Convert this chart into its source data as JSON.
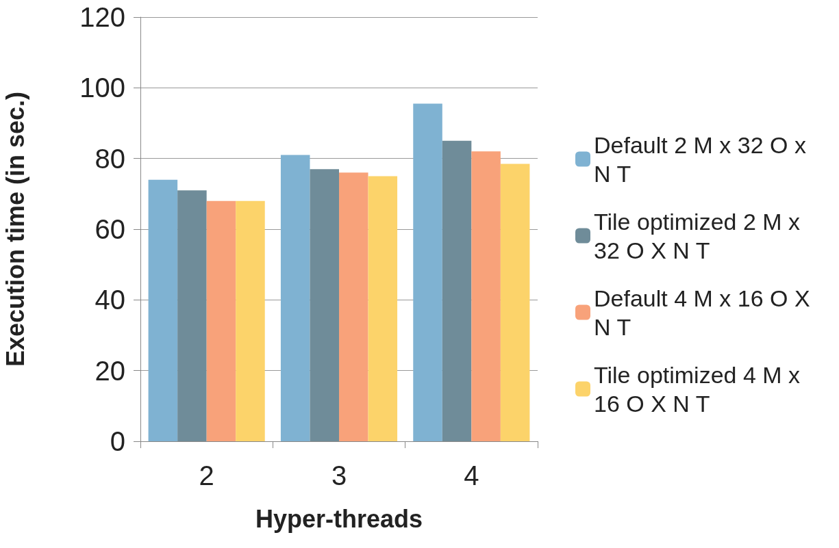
{
  "chart_data": {
    "type": "bar",
    "xlabel": "Hyper-threads",
    "ylabel": "Execution time (in sec.)",
    "categories": [
      "2",
      "3",
      "4"
    ],
    "series": [
      {
        "name": "Default 2 M x 32 O x N T",
        "color": "#7fb2d2",
        "values": [
          74,
          81,
          95.5
        ]
      },
      {
        "name": "Tile optimized 2 M x 32 O X N T",
        "color": "#6f8c99",
        "values": [
          71,
          77,
          85
        ]
      },
      {
        "name": "Default 4 M x 16 O X N T",
        "color": "#f8a27a",
        "values": [
          68,
          76,
          82
        ]
      },
      {
        "name": "Tile optimized 4 M x 16 O X N T",
        "color": "#fcd36a",
        "values": [
          68,
          75,
          78.5
        ]
      }
    ],
    "ylim": [
      0,
      120
    ],
    "yticks": [
      0,
      20,
      40,
      60,
      80,
      100,
      120
    ],
    "grid": "y",
    "legend": "right"
  }
}
